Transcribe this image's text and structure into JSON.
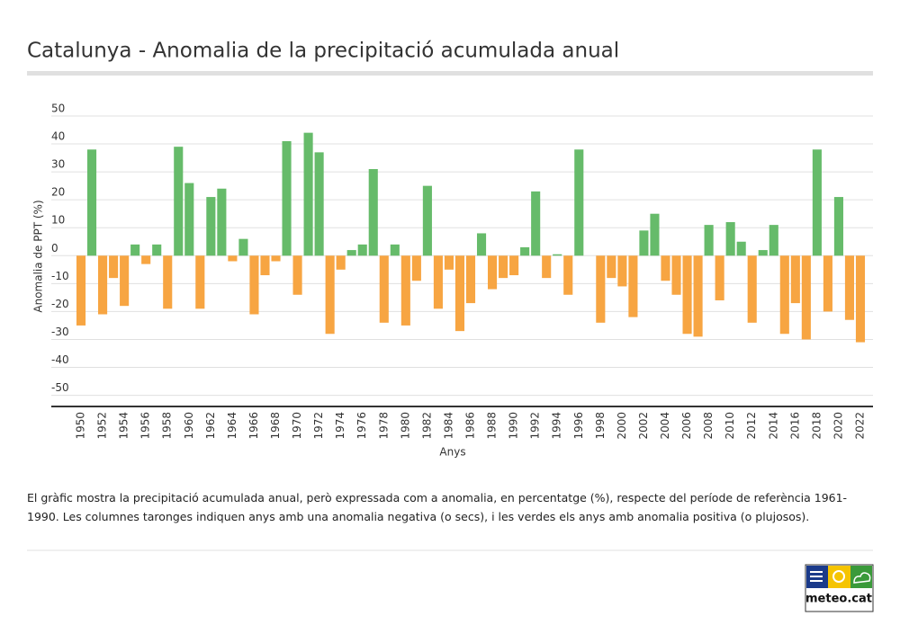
{
  "chart_data": {
    "type": "bar",
    "title": "Catalunya - Anomalia de la precipitació acumulada anual",
    "x_label": "Anys",
    "y_label": "Anomalia de PPT (%)",
    "categories": [
      "1950",
      null,
      "1952",
      null,
      "1954",
      null,
      "1956",
      null,
      "1958",
      null,
      "1960",
      null,
      "1962",
      null,
      "1964",
      null,
      "1966",
      null,
      "1968",
      null,
      "1970",
      null,
      "1972",
      null,
      "1974",
      null,
      "1976",
      null,
      "1978",
      null,
      "1980",
      null,
      "1982",
      null,
      "1984",
      null,
      "1986",
      null,
      "1988",
      null,
      "1990",
      null,
      "1992",
      null,
      "1994",
      null,
      "1996",
      null,
      "1998",
      null,
      "2000",
      null,
      "2002",
      null,
      "2004",
      null,
      "2006",
      null,
      "2008",
      null,
      "2010",
      null,
      "2012",
      null,
      "2014",
      null,
      "2016",
      null,
      "2018",
      null,
      "2020",
      null,
      "2022"
    ],
    "values": [
      -25,
      38,
      -21,
      -8,
      -18,
      4,
      -3,
      4,
      -19,
      39,
      26,
      -19,
      21,
      24,
      -2,
      6,
      -21,
      -7,
      -2,
      41,
      -14,
      44,
      37,
      -28,
      -5,
      2,
      4,
      31,
      -24,
      4,
      -25,
      -9,
      25,
      -19,
      -5,
      -27,
      -17,
      8,
      -12,
      -8,
      -7,
      3,
      23,
      -8,
      0.5,
      -14,
      38,
      0,
      -24,
      -8,
      -11,
      -22,
      9,
      15,
      -9,
      -14,
      -28,
      -29,
      11,
      -16,
      12,
      5,
      -24,
      2,
      11,
      -28,
      -17,
      -30,
      38,
      -20,
      21,
      -23,
      -31
    ],
    "positive_color": "#66bb6a",
    "negative_color": "#f7a542",
    "ylim": [
      -54,
      50
    ],
    "yticks": [
      -50,
      -40,
      -30,
      -20,
      -10,
      0,
      10,
      20,
      30,
      40,
      50
    ],
    "grid": true
  },
  "description": "El gràfic mostra la precipitació acumulada anual, però expressada com a anomalia, en percentatge (%), respecte del període de referència 1961-1990. Les columnes taronges indiquen anys amb una anomalia negativa (o secs), i les verdes els anys amb anomalia positiva (o plujosos).",
  "logo": "meteo.cat"
}
